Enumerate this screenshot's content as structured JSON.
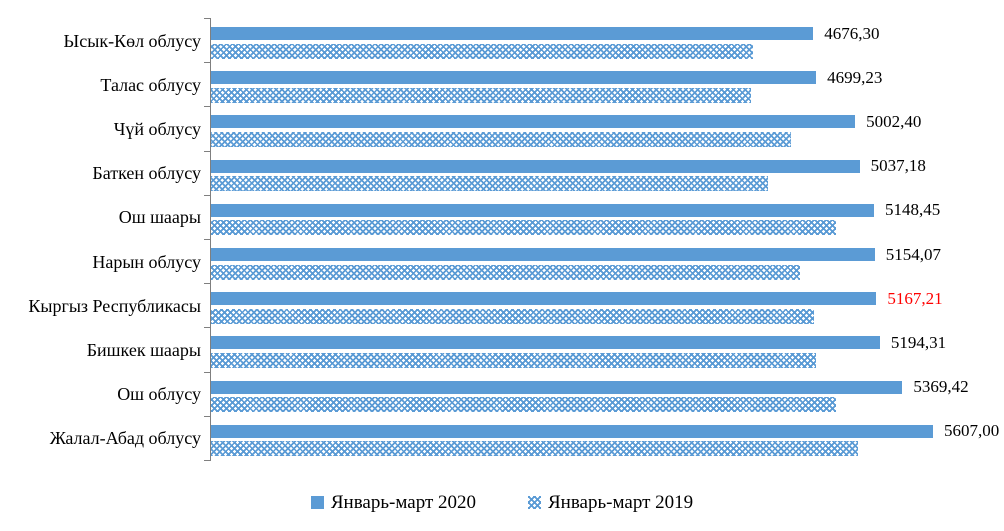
{
  "chart_data": {
    "type": "bar",
    "orientation": "horizontal",
    "title": "",
    "xlabel": "",
    "ylabel": "",
    "grid": false,
    "legend_position": "bottom",
    "value_axis": {
      "min": 0,
      "visible": false
    },
    "colors": {
      "bar_blue": "#5B9BD5",
      "highlight_label": "#FF0000",
      "axis": "#7f7f7f",
      "text": "#000000"
    },
    "categories": [
      "Ысык-Көл облусу",
      "Талас облусу",
      "Чүй облусу",
      "Баткен облусу",
      "Ош шаары",
      "Нарын облусу",
      "Кыргыз Республикасы",
      "Бишкек шаары",
      "Ош облусу",
      "Жалал-Абад облусу"
    ],
    "series": [
      {
        "name": "Январь-март 2020",
        "values": [
          4676.3,
          4699.23,
          5002.4,
          5037.18,
          5148.45,
          5154.07,
          5167.21,
          5194.31,
          5369.42,
          5607.0
        ]
      },
      {
        "name": "Январь-март 2019",
        "values_estimated": [
          4210,
          4195,
          4505,
          4325,
          4855,
          4575,
          4685,
          4700,
          4855,
          5025
        ]
      }
    ],
    "rows": [
      {
        "category": "Ысык-Көл облусу",
        "v2020": 4676.3,
        "label2020": "4676,30",
        "v2019_est": 4210,
        "highlight": false
      },
      {
        "category": "Талас облусу",
        "v2020": 4699.23,
        "label2020": "4699,23",
        "v2019_est": 4195,
        "highlight": false
      },
      {
        "category": "Чүй облусу",
        "v2020": 5002.4,
        "label2020": "5002,40",
        "v2019_est": 4505,
        "highlight": false
      },
      {
        "category": "Баткен облусу",
        "v2020": 5037.18,
        "label2020": "5037,18",
        "v2019_est": 4325,
        "highlight": false
      },
      {
        "category": "Ош шаары",
        "v2020": 5148.45,
        "label2020": "5148,45",
        "v2019_est": 4855,
        "highlight": false
      },
      {
        "category": "Нарын облусу",
        "v2020": 5154.07,
        "label2020": "5154,07",
        "v2019_est": 4575,
        "highlight": false
      },
      {
        "category": "Кыргыз Республикасы",
        "v2020": 5167.21,
        "label2020": "5167,21",
        "v2019_est": 4685,
        "highlight": true
      },
      {
        "category": "Бишкек шаары",
        "v2020": 5194.31,
        "label2020": "5194,31",
        "v2019_est": 4700,
        "highlight": false
      },
      {
        "category": "Ош облусу",
        "v2020": 5369.42,
        "label2020": "5369,42",
        "v2019_est": 4855,
        "highlight": false
      },
      {
        "category": "Жалал-Абад облусу",
        "v2020": 5607.0,
        "label2020": "5607,00",
        "v2019_est": 5025,
        "highlight": false
      }
    ],
    "legend": [
      {
        "label": "Январь-март 2020",
        "swatch": "solid-blue-square"
      },
      {
        "label": "Январь-март 2019",
        "swatch": "patterned-blue-square"
      }
    ]
  }
}
